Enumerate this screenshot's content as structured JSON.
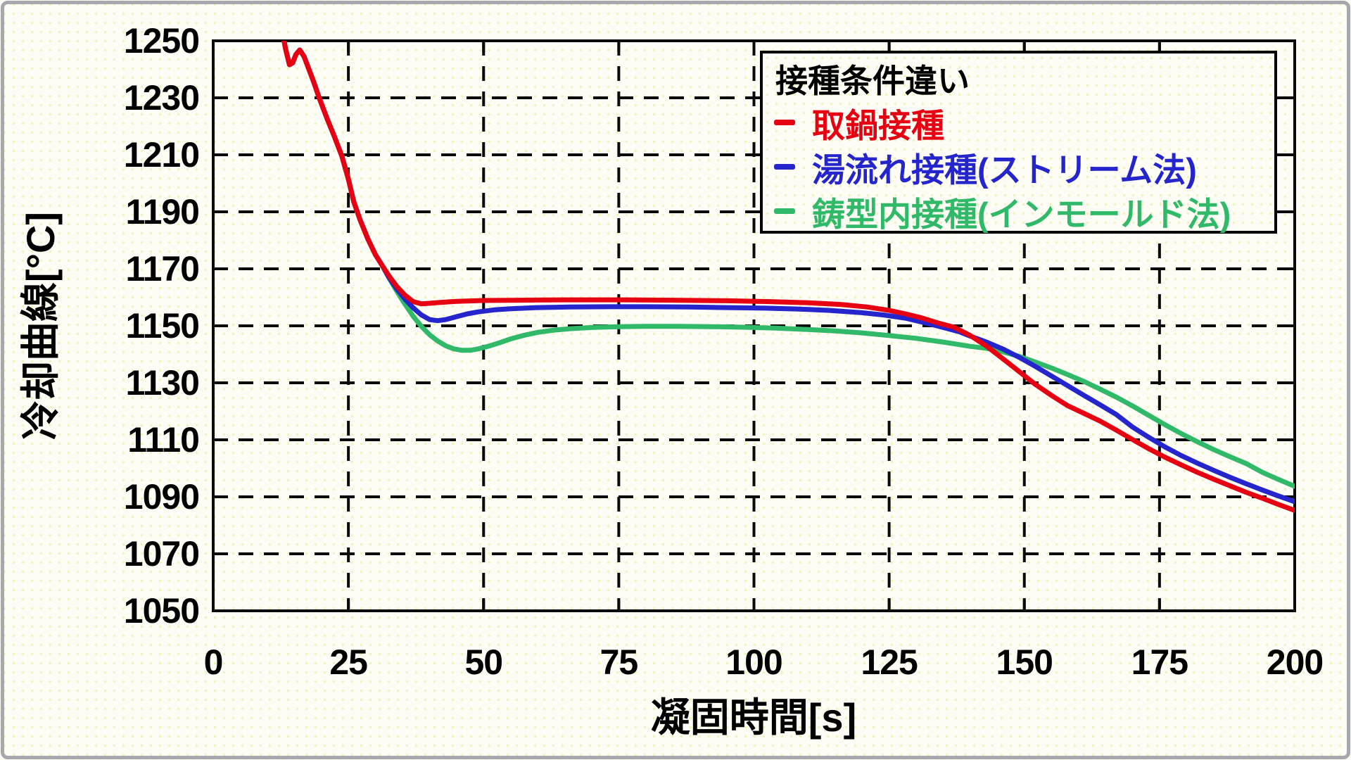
{
  "frame": {
    "border_color": "#a7a7ae",
    "background": "#fdfdf6"
  },
  "chart_data": {
    "type": "line",
    "title": "",
    "xlabel": "凝固時間[s]",
    "ylabel": "冷却曲線[°C]",
    "xlim": [
      0,
      200
    ],
    "ylim": [
      1050,
      1250
    ],
    "xticks": [
      0,
      25,
      50,
      75,
      100,
      125,
      150,
      175,
      200
    ],
    "yticks": [
      1050,
      1070,
      1090,
      1110,
      1130,
      1150,
      1170,
      1190,
      1210,
      1230,
      1250
    ],
    "grid": "dashed",
    "grid_color": "#0a0a0a",
    "border_color": "#0a0a0a",
    "legend": {
      "position": "top-right",
      "title": "接種条件違い",
      "entries": [
        {
          "id": "ladle-inoculation",
          "label": "取鍋接種",
          "color": "#e60012"
        },
        {
          "id": "stream-inoculation",
          "label": "湯流れ接種(ストリーム法)",
          "color": "#2525cd"
        },
        {
          "id": "inmold-inoculation",
          "label": "鋳型内接種(インモールド法)",
          "color": "#2fb968"
        }
      ]
    },
    "series": [
      {
        "id": "ladle-inoculation",
        "name": "取鍋接種",
        "color": "#e60012",
        "points": [
          [
            12.8,
            1253
          ],
          [
            13.4,
            1247
          ],
          [
            14.1,
            1241.6
          ],
          [
            14.7,
            1242.3
          ],
          [
            15.3,
            1245.2
          ],
          [
            16,
            1246.8
          ],
          [
            16.8,
            1244.5
          ],
          [
            17.6,
            1240.5
          ],
          [
            18.6,
            1235.5
          ],
          [
            19.6,
            1230
          ],
          [
            21,
            1223
          ],
          [
            22.4,
            1216.5
          ],
          [
            23.8,
            1209.5
          ],
          [
            25,
            1201.5
          ],
          [
            26,
            1193.5
          ],
          [
            27.2,
            1187
          ],
          [
            28.6,
            1180.5
          ],
          [
            30,
            1175
          ],
          [
            31.2,
            1171.3
          ],
          [
            32.5,
            1167.5
          ],
          [
            34,
            1163.7
          ],
          [
            35.5,
            1160.7
          ],
          [
            37,
            1158.5
          ],
          [
            38.5,
            1157.7
          ],
          [
            40,
            1157.9
          ],
          [
            42,
            1158.2
          ],
          [
            45,
            1158.6
          ],
          [
            50,
            1158.9
          ],
          [
            57,
            1159
          ],
          [
            65,
            1159.1
          ],
          [
            75,
            1159.1
          ],
          [
            85,
            1159
          ],
          [
            95,
            1158.8
          ],
          [
            103,
            1158.5
          ],
          [
            110,
            1158.1
          ],
          [
            116,
            1157.5
          ],
          [
            121,
            1156.6
          ],
          [
            125,
            1155.4
          ],
          [
            128,
            1154.2
          ],
          [
            131,
            1152.8
          ],
          [
            134,
            1151
          ],
          [
            137,
            1149.5
          ],
          [
            140,
            1146.6
          ],
          [
            143,
            1142.9
          ],
          [
            146,
            1138.5
          ],
          [
            149,
            1134
          ],
          [
            152,
            1129.5
          ],
          [
            155,
            1125.6
          ],
          [
            158,
            1122
          ],
          [
            161,
            1119.3
          ],
          [
            164,
            1116.6
          ],
          [
            167,
            1113.4
          ],
          [
            170,
            1110.1
          ],
          [
            173,
            1106.9
          ],
          [
            176,
            1103.9
          ],
          [
            179,
            1101.2
          ],
          [
            182,
            1098.6
          ],
          [
            185,
            1096.2
          ],
          [
            188,
            1093.9
          ],
          [
            191,
            1091.6
          ],
          [
            194,
            1089.5
          ],
          [
            197,
            1087.3
          ],
          [
            200,
            1085.2
          ]
        ]
      },
      {
        "id": "stream-inoculation",
        "name": "湯流れ接種(ストリーム法)",
        "color": "#2525cd",
        "points": [
          [
            12.8,
            1253
          ],
          [
            13.4,
            1247
          ],
          [
            14.1,
            1241.6
          ],
          [
            14.7,
            1242.3
          ],
          [
            15.3,
            1245.2
          ],
          [
            16,
            1246.8
          ],
          [
            16.8,
            1244.5
          ],
          [
            17.6,
            1240.5
          ],
          [
            18.6,
            1235.5
          ],
          [
            19.6,
            1230
          ],
          [
            21,
            1223
          ],
          [
            22.4,
            1216.5
          ],
          [
            23.8,
            1209.5
          ],
          [
            25,
            1201.5
          ],
          [
            26,
            1193.5
          ],
          [
            27.2,
            1187
          ],
          [
            28.6,
            1180.5
          ],
          [
            30,
            1175
          ],
          [
            31.2,
            1171.3
          ],
          [
            32.5,
            1167
          ],
          [
            34,
            1162.8
          ],
          [
            35.5,
            1159.3
          ],
          [
            37,
            1156.3
          ],
          [
            38.5,
            1153.8
          ],
          [
            40,
            1152.2
          ],
          [
            41.5,
            1151.8
          ],
          [
            43,
            1152.2
          ],
          [
            45,
            1153.2
          ],
          [
            47,
            1154.2
          ],
          [
            49,
            1154.9
          ],
          [
            52,
            1155.6
          ],
          [
            55,
            1156
          ],
          [
            60,
            1156.4
          ],
          [
            66,
            1156.6
          ],
          [
            73,
            1156.7
          ],
          [
            80,
            1156.7
          ],
          [
            88,
            1156.6
          ],
          [
            95,
            1156.4
          ],
          [
            102,
            1156.2
          ],
          [
            108,
            1155.9
          ],
          [
            114,
            1155.4
          ],
          [
            120,
            1154.6
          ],
          [
            124,
            1153.8
          ],
          [
            128,
            1152.7
          ],
          [
            132,
            1150.9
          ],
          [
            135,
            1149.4
          ],
          [
            138,
            1147.9
          ],
          [
            140,
            1146.4
          ],
          [
            143,
            1144.3
          ],
          [
            146,
            1141.9
          ],
          [
            149,
            1139
          ],
          [
            152,
            1135.8
          ],
          [
            155,
            1132.4
          ],
          [
            158,
            1129
          ],
          [
            161,
            1125.6
          ],
          [
            164,
            1122.3
          ],
          [
            167,
            1118.9
          ],
          [
            170,
            1114.5
          ],
          [
            173,
            1110.9
          ],
          [
            176,
            1107.5
          ],
          [
            179,
            1104.5
          ],
          [
            182,
            1101.8
          ],
          [
            185,
            1099.3
          ],
          [
            188,
            1096.9
          ],
          [
            191,
            1094.6
          ],
          [
            194,
            1092.4
          ],
          [
            197,
            1090.3
          ],
          [
            200,
            1088.3
          ]
        ]
      },
      {
        "id": "inmold-inoculation",
        "name": "鋳型内接種(インモールド法)",
        "color": "#2fb968",
        "points": [
          [
            12.8,
            1253
          ],
          [
            13.4,
            1247
          ],
          [
            14.1,
            1241.6
          ],
          [
            14.7,
            1242.3
          ],
          [
            15.3,
            1245.2
          ],
          [
            16,
            1246.8
          ],
          [
            16.8,
            1244.5
          ],
          [
            17.6,
            1240.5
          ],
          [
            18.6,
            1235.5
          ],
          [
            19.6,
            1230
          ],
          [
            21,
            1223
          ],
          [
            22.4,
            1216.5
          ],
          [
            23.8,
            1209.5
          ],
          [
            25,
            1201.5
          ],
          [
            26,
            1193.5
          ],
          [
            27.2,
            1187
          ],
          [
            28.6,
            1180.5
          ],
          [
            30,
            1175
          ],
          [
            31.2,
            1171.3
          ],
          [
            32.5,
            1166.8
          ],
          [
            34,
            1162
          ],
          [
            35.5,
            1157.5
          ],
          [
            37,
            1153.3
          ],
          [
            38.5,
            1149.8
          ],
          [
            40,
            1146.9
          ],
          [
            41.5,
            1144.7
          ],
          [
            43,
            1143
          ],
          [
            44.5,
            1141.9
          ],
          [
            46,
            1141.4
          ],
          [
            47.5,
            1141.4
          ],
          [
            49,
            1141.9
          ],
          [
            51,
            1142.9
          ],
          [
            53,
            1144.1
          ],
          [
            55,
            1145.4
          ],
          [
            57.5,
            1146.7
          ],
          [
            60,
            1147.7
          ],
          [
            63,
            1148.5
          ],
          [
            66,
            1149
          ],
          [
            70,
            1149.4
          ],
          [
            75,
            1149.7
          ],
          [
            80,
            1149.8
          ],
          [
            86,
            1149.8
          ],
          [
            92,
            1149.7
          ],
          [
            98,
            1149.5
          ],
          [
            104,
            1149.2
          ],
          [
            110,
            1148.7
          ],
          [
            115,
            1148.2
          ],
          [
            120,
            1147.5
          ],
          [
            125,
            1146.6
          ],
          [
            130,
            1145.6
          ],
          [
            135,
            1144.3
          ],
          [
            140,
            1142.8
          ],
          [
            143,
            1142.1
          ],
          [
            146,
            1140.9
          ],
          [
            149,
            1139.3
          ],
          [
            152,
            1137.3
          ],
          [
            155,
            1135.2
          ],
          [
            158,
            1132.9
          ],
          [
            161,
            1130.5
          ],
          [
            164,
            1127.8
          ],
          [
            167,
            1125
          ],
          [
            170,
            1121.9
          ],
          [
            173,
            1118.6
          ],
          [
            176,
            1115.3
          ],
          [
            179,
            1112.2
          ],
          [
            182,
            1109.3
          ],
          [
            185,
            1106.6
          ],
          [
            188,
            1104.1
          ],
          [
            191,
            1101.7
          ],
          [
            194,
            1098.6
          ],
          [
            197,
            1096.1
          ],
          [
            200,
            1093.7
          ]
        ]
      }
    ]
  }
}
